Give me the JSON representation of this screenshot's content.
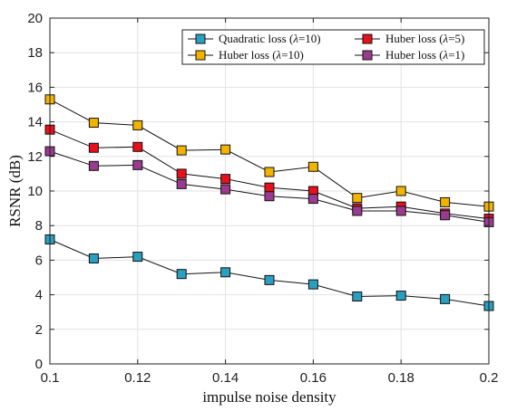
{
  "chart_data": {
    "type": "line",
    "xlabel": "impulse noise density",
    "ylabel": "RSNR (dB)",
    "xlim": [
      0.1,
      0.2
    ],
    "ylim": [
      0,
      20
    ],
    "xticks": [
      0.1,
      0.12,
      0.14,
      0.16,
      0.18,
      0.2
    ],
    "xtick_labels": [
      "0.1",
      "0.12",
      "0.14",
      "0.16",
      "0.18",
      "0.2"
    ],
    "yticks": [
      0,
      2,
      4,
      6,
      8,
      10,
      12,
      14,
      16,
      18,
      20
    ],
    "ytick_labels": [
      "0",
      "2",
      "4",
      "6",
      "8",
      "10",
      "12",
      "14",
      "16",
      "18",
      "20"
    ],
    "grid": true,
    "legend_position": "top-right",
    "x": [
      0.1,
      0.11,
      0.12,
      0.13,
      0.14,
      0.15,
      0.16,
      0.17,
      0.18,
      0.19,
      0.2
    ],
    "series": [
      {
        "name": "Quadratic loss (λ=10)",
        "legend_prefix": "Quadratic loss (",
        "legend_lambda": "λ",
        "legend_suffix": "=10)",
        "color": "#2a9fc0",
        "values": [
          7.2,
          6.1,
          6.2,
          5.2,
          5.3,
          4.85,
          4.6,
          3.9,
          3.95,
          3.75,
          3.35
        ]
      },
      {
        "name": "Huber loss (λ=10)",
        "legend_prefix": "Huber loss (",
        "legend_lambda": "λ",
        "legend_suffix": "=10)",
        "color": "#f2b400",
        "values": [
          15.3,
          13.95,
          13.8,
          12.35,
          12.4,
          11.1,
          11.4,
          9.6,
          10.0,
          9.35,
          9.1
        ]
      },
      {
        "name": "Huber loss (λ=5)",
        "legend_prefix": "Huber loss (",
        "legend_lambda": "λ",
        "legend_suffix": "=5)",
        "color": "#e8101a",
        "values": [
          13.55,
          12.5,
          12.55,
          11.0,
          10.7,
          10.2,
          10.0,
          9.0,
          9.1,
          8.7,
          8.4
        ]
      },
      {
        "name": "Huber loss (λ=1)",
        "legend_prefix": "Huber loss (",
        "legend_lambda": "λ",
        "legend_suffix": "=1)",
        "color": "#9b3a8e",
        "values": [
          12.3,
          11.45,
          11.5,
          10.4,
          10.1,
          9.7,
          9.55,
          8.85,
          8.85,
          8.6,
          8.2
        ]
      }
    ]
  }
}
